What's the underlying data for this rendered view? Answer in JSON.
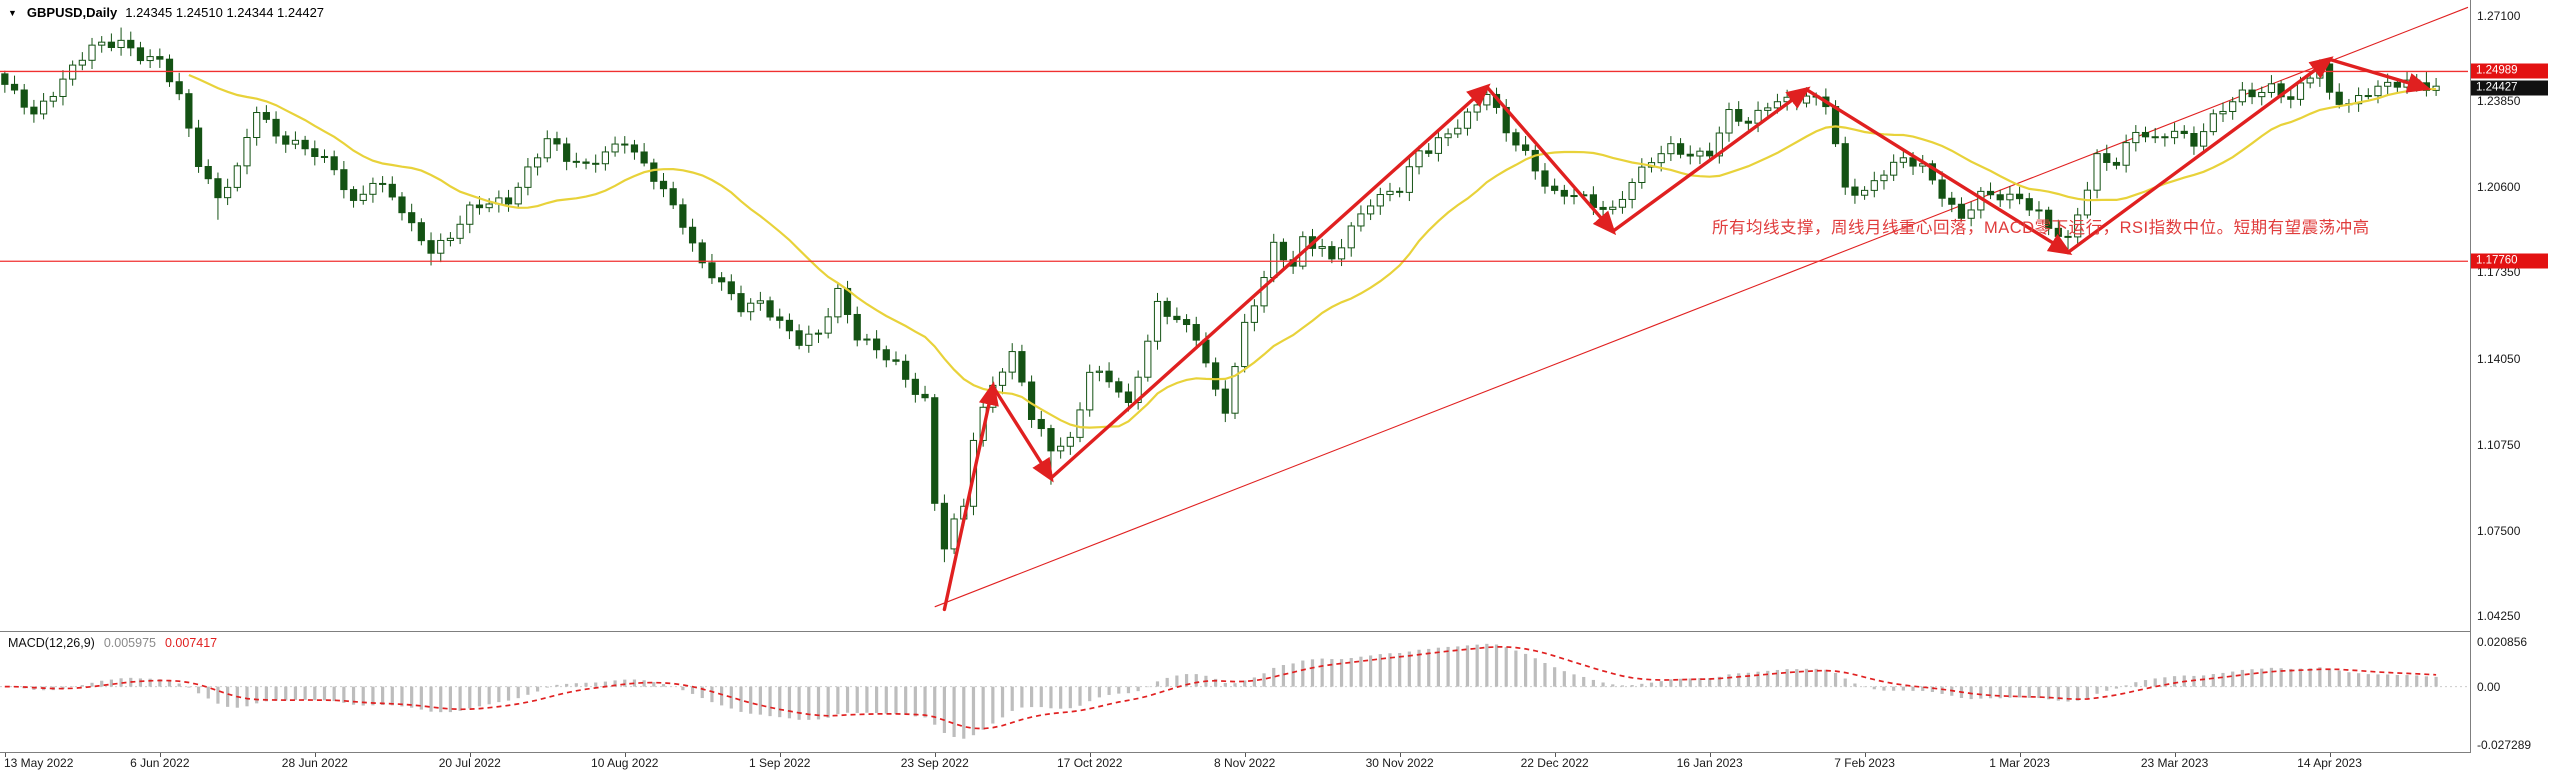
{
  "window": {
    "dropdown_icon": "▼",
    "symbol_label": "GBPUSD,Daily",
    "ohlc_label": "1.24345 1.24510 1.24344 1.24427"
  },
  "annotation": {
    "text": "所有均线支撑，周线月线重心回落，MACD零下运行，RSI指数中位。短期有望震荡冲高"
  },
  "price_axis": {
    "ticks": [
      {
        "label": "1.27100",
        "value": 1.271
      },
      {
        "label": "1.23850",
        "value": 1.2385
      },
      {
        "label": "1.20600",
        "value": 1.206
      },
      {
        "label": "1.17350",
        "value": 1.1735
      },
      {
        "label": "1.14050",
        "value": 1.1405
      },
      {
        "label": "1.10750",
        "value": 1.1075
      },
      {
        "label": "1.07500",
        "value": 1.075
      },
      {
        "label": "1.04250",
        "value": 1.0425
      }
    ],
    "hline_upper": {
      "label": "1.24989",
      "value": 1.24989
    },
    "hline_lower": {
      "label": "1.17760",
      "value": 1.1776
    },
    "last_price": {
      "label": "1.24427",
      "value": 1.24427
    }
  },
  "macd_panel": {
    "name": "MACD(12,26,9)",
    "value_main": "0.005975",
    "value_signal": "0.007417",
    "ticks": [
      {
        "label": "0.020856",
        "value": 0.020856
      },
      {
        "label": "0.00",
        "value": 0
      },
      {
        "label": "-0.027289",
        "value": -0.027289
      }
    ]
  },
  "time_axis": {
    "labels": [
      "13 May 2022",
      "6 Jun 2022",
      "28 Jun 2022",
      "20 Jul 2022",
      "10 Aug 2022",
      "1 Sep 2022",
      "23 Sep 2022",
      "17 Oct 2022",
      "8 Nov 2022",
      "30 Nov 2022",
      "22 Dec 2022",
      "16 Jan 2023",
      "7 Feb 2023",
      "1 Mar 2023",
      "23 Mar 2023",
      "14 Apr 2023"
    ],
    "label_step_bars": 16
  },
  "colors": {
    "candle_up_fill": "#ffffff",
    "candle_down_fill": "#145214",
    "candle_stroke": "#145214",
    "ma_line": "#e8d23a",
    "hline": "#f03030",
    "trendline": "#e02020",
    "arrow": "#e02020",
    "macd_bar": "#bdbdbd",
    "macd_signal": "#e02020",
    "badge_red": "#e31212",
    "badge_black": "#101010",
    "annotation": "#e03c3c"
  },
  "chart_data": [
    {
      "type": "candlestick",
      "symbol": "GBPUSD",
      "timeframe": "Daily",
      "current": {
        "open": 1.24345,
        "high": 1.2451,
        "low": 1.24344,
        "close": 1.24427
      },
      "ylim": [
        1.0425,
        1.271
      ],
      "y_ticks": [
        1.271,
        1.2385,
        1.206,
        1.1735,
        1.1405,
        1.1075,
        1.075,
        1.0425
      ],
      "hlines": [
        1.24989,
        1.1776
      ],
      "n_bars": 252,
      "x_slots": 255,
      "ma_period": 20,
      "close_keypoints": [
        [
          0,
          1.244
        ],
        [
          3,
          1.234
        ],
        [
          6,
          1.247
        ],
        [
          9,
          1.2585
        ],
        [
          12,
          1.262
        ],
        [
          14,
          1.256
        ],
        [
          16,
          1.253
        ],
        [
          18,
          1.24
        ],
        [
          20,
          1.216
        ],
        [
          22,
          1.202
        ],
        [
          24,
          1.212
        ],
        [
          26,
          1.235
        ],
        [
          28,
          1.226
        ],
        [
          30,
          1.223
        ],
        [
          32,
          1.218
        ],
        [
          34,
          1.212
        ],
        [
          36,
          1.2
        ],
        [
          38,
          1.209
        ],
        [
          40,
          1.202
        ],
        [
          42,
          1.19
        ],
        [
          44,
          1.182
        ],
        [
          46,
          1.188
        ],
        [
          48,
          1.197
        ],
        [
          50,
          1.199
        ],
        [
          52,
          1.201
        ],
        [
          54,
          1.213
        ],
        [
          56,
          1.224
        ],
        [
          58,
          1.216
        ],
        [
          60,
          1.214
        ],
        [
          62,
          1.22
        ],
        [
          64,
          1.223
        ],
        [
          66,
          1.213
        ],
        [
          68,
          1.205
        ],
        [
          70,
          1.193
        ],
        [
          72,
          1.176
        ],
        [
          74,
          1.168
        ],
        [
          76,
          1.16
        ],
        [
          78,
          1.163
        ],
        [
          80,
          1.154
        ],
        [
          82,
          1.146
        ],
        [
          84,
          1.15
        ],
        [
          86,
          1.167
        ],
        [
          88,
          1.149
        ],
        [
          90,
          1.143
        ],
        [
          92,
          1.138
        ],
        [
          94,
          1.129
        ],
        [
          95,
          1.125
        ],
        [
          96,
          1.086
        ],
        [
          97,
          1.0685
        ],
        [
          98,
          1.077
        ],
        [
          99,
          1.084
        ],
        [
          100,
          1.11
        ],
        [
          102,
          1.132
        ],
        [
          104,
          1.142
        ],
        [
          105,
          1.132
        ],
        [
          106,
          1.117
        ],
        [
          108,
          1.106
        ],
        [
          110,
          1.11
        ],
        [
          112,
          1.136
        ],
        [
          114,
          1.132
        ],
        [
          116,
          1.122
        ],
        [
          118,
          1.148
        ],
        [
          119,
          1.162
        ],
        [
          121,
          1.155
        ],
        [
          123,
          1.148
        ],
        [
          125,
          1.128
        ],
        [
          126,
          1.122
        ],
        [
          128,
          1.154
        ],
        [
          130,
          1.17
        ],
        [
          131,
          1.183
        ],
        [
          133,
          1.175
        ],
        [
          134,
          1.187
        ],
        [
          136,
          1.183
        ],
        [
          137,
          1.178
        ],
        [
          139,
          1.189
        ],
        [
          141,
          1.2
        ],
        [
          143,
          1.205
        ],
        [
          144,
          1.206
        ],
        [
          146,
          1.219
        ],
        [
          147,
          1.219
        ],
        [
          149,
          1.226
        ],
        [
          151,
          1.234
        ],
        [
          153,
          1.2425
        ],
        [
          155,
          1.226
        ],
        [
          157,
          1.218
        ],
        [
          159,
          1.208
        ],
        [
          160,
          1.204
        ],
        [
          162,
          1.203
        ],
        [
          164,
          1.198
        ],
        [
          166,
          1.197
        ],
        [
          168,
          1.209
        ],
        [
          170,
          1.216
        ],
        [
          172,
          1.22
        ],
        [
          174,
          1.218
        ],
        [
          176,
          1.22
        ],
        [
          178,
          1.234
        ],
        [
          180,
          1.229
        ],
        [
          182,
          1.2375
        ],
        [
          184,
          1.24
        ],
        [
          186,
          1.24
        ],
        [
          188,
          1.237
        ],
        [
          190,
          1.205
        ],
        [
          192,
          1.2048
        ],
        [
          194,
          1.212
        ],
        [
          196,
          1.2155
        ],
        [
          198,
          1.2135
        ],
        [
          200,
          1.204
        ],
        [
          202,
          1.194
        ],
        [
          204,
          1.202
        ],
        [
          206,
          1.202
        ],
        [
          208,
          1.2025
        ],
        [
          210,
          1.196
        ],
        [
          211,
          1.19
        ],
        [
          213,
          1.1845
        ],
        [
          215,
          1.206
        ],
        [
          216,
          1.218
        ],
        [
          218,
          1.2155
        ],
        [
          220,
          1.2265
        ],
        [
          222,
          1.223
        ],
        [
          224,
          1.2285
        ],
        [
          226,
          1.223
        ],
        [
          228,
          1.2315
        ],
        [
          230,
          1.238
        ],
        [
          231,
          1.2415
        ],
        [
          233,
          1.243
        ],
        [
          234,
          1.2445
        ],
        [
          236,
          1.2385
        ],
        [
          238,
          1.248
        ],
        [
          239,
          1.2525
        ],
        [
          240,
          1.2415
        ],
        [
          242,
          1.238
        ],
        [
          244,
          1.2415
        ],
        [
          246,
          1.244
        ],
        [
          248,
          1.2465
        ],
        [
          250,
          1.245
        ],
        [
          251,
          1.24427
        ]
      ],
      "wick_overrides": {
        "12": {
          "high": 1.2666
        },
        "22": {
          "low": 1.1934
        },
        "44": {
          "low": 1.176
        },
        "97": {
          "low": 1.063
        },
        "108": {
          "low": 1.0925
        },
        "213": {
          "low": 1.1802
        },
        "239": {
          "high": 1.2545
        },
        "250": {
          "high": 1.25
        }
      },
      "trendline": {
        "from": [
          96,
          1.046
        ],
        "to": [
          252,
          1.271
        ]
      },
      "arrows": [
        [
          [
            97,
            1.045
          ],
          [
            102,
            1.13
          ]
        ],
        [
          [
            102,
            1.13
          ],
          [
            108,
            1.095
          ]
        ],
        [
          [
            108,
            1.095
          ],
          [
            153,
            1.244
          ]
        ],
        [
          [
            153,
            1.244
          ],
          [
            166,
            1.189
          ]
        ],
        [
          [
            166,
            1.189
          ],
          [
            186,
            1.243
          ]
        ],
        [
          [
            186,
            1.243
          ],
          [
            213,
            1.181
          ]
        ],
        [
          [
            213,
            1.181
          ],
          [
            240,
            1.2545
          ]
        ],
        [
          [
            240,
            1.2545
          ],
          [
            250,
            1.2435
          ]
        ]
      ],
      "x_labels": [
        "13 May 2022",
        "6 Jun 2022",
        "28 Jun 2022",
        "20 Jul 2022",
        "10 Aug 2022",
        "1 Sep 2022",
        "23 Sep 2022",
        "17 Oct 2022",
        "8 Nov 2022",
        "30 Nov 2022",
        "22 Dec 2022",
        "16 Jan 2023",
        "7 Feb 2023",
        "1 Mar 2023",
        "23 Mar 2023",
        "14 Apr 2023"
      ]
    },
    {
      "type": "macd",
      "derived_from_closes": true,
      "params": [
        12,
        26,
        9
      ],
      "current_macd": 0.005975,
      "current_signal": 0.007417,
      "ylim": [
        -0.027289,
        0.020856
      ],
      "y_ticks": [
        0.020856,
        0,
        -0.027289
      ]
    }
  ]
}
